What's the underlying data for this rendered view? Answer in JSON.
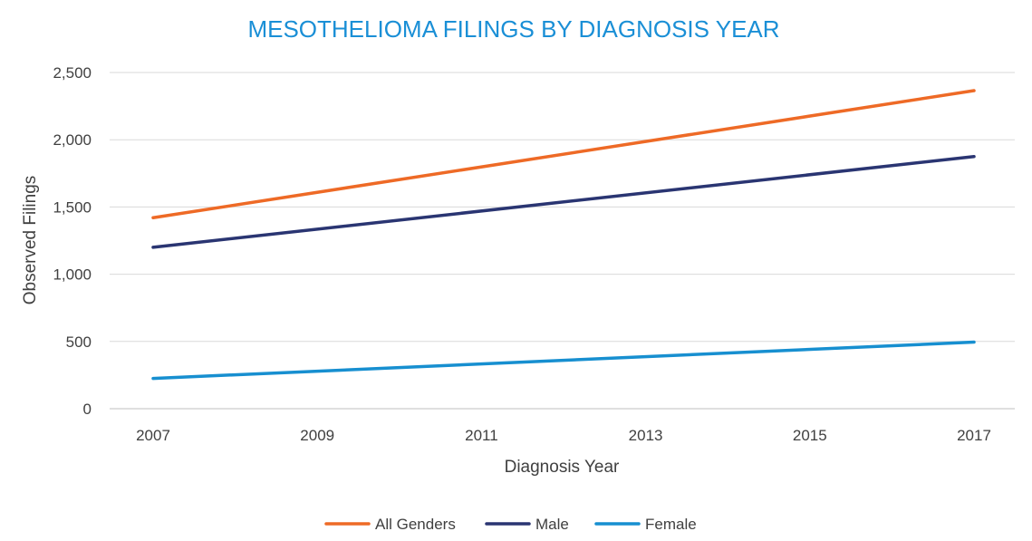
{
  "chart_data": {
    "type": "line",
    "title": "MESOTHELIOMA FILINGS BY DIAGNOSIS YEAR",
    "xlabel": "Diagnosis Year",
    "ylabel": "Observed Filings",
    "x_ticks": [
      "2007",
      "2009",
      "2011",
      "2013",
      "2015",
      "2017"
    ],
    "y_ticks": [
      "0",
      "500",
      "1,000",
      "1,500",
      "2,000",
      "2,500"
    ],
    "xlim": [
      2007,
      2017
    ],
    "ylim": [
      0,
      2500
    ],
    "grid": true,
    "legend_position": "bottom",
    "series": [
      {
        "name": "All Genders",
        "color": "#ee6a26",
        "x": [
          2007,
          2017
        ],
        "y": [
          1420,
          2365
        ]
      },
      {
        "name": "Male",
        "color": "#2a3572",
        "x": [
          2007,
          2017
        ],
        "y": [
          1200,
          1875
        ]
      },
      {
        "name": "Female",
        "color": "#178fd0",
        "x": [
          2007,
          2017
        ],
        "y": [
          225,
          495
        ]
      }
    ]
  }
}
